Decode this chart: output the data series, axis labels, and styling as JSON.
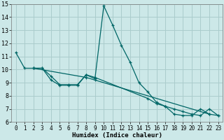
{
  "xlabel": "Humidex (Indice chaleur)",
  "bg_color": "#cce8e8",
  "grid_color": "#aacccc",
  "line_color": "#006666",
  "xlim": [
    -0.5,
    23.5
  ],
  "ylim": [
    6,
    15
  ],
  "yticks": [
    6,
    7,
    8,
    9,
    10,
    11,
    12,
    13,
    14,
    15
  ],
  "xticks": [
    0,
    1,
    2,
    3,
    4,
    5,
    6,
    7,
    8,
    9,
    10,
    11,
    12,
    13,
    14,
    15,
    16,
    17,
    18,
    19,
    20,
    21,
    22,
    23
  ],
  "series1_x": [
    0,
    1,
    2,
    3,
    4,
    5,
    6,
    7,
    8,
    9,
    10,
    11,
    12,
    13,
    14,
    15,
    16,
    17,
    18,
    19,
    20,
    21,
    22,
    23
  ],
  "series1_y": [
    11.3,
    10.1,
    10.1,
    10.1,
    9.2,
    8.8,
    8.8,
    8.8,
    9.6,
    9.3,
    14.85,
    13.4,
    11.85,
    10.55,
    9.0,
    8.3,
    7.5,
    7.2,
    6.6,
    6.5,
    6.5,
    7.0,
    6.6,
    6.5
  ],
  "series2_x": [
    2,
    3,
    4,
    5,
    6,
    7,
    8,
    9,
    15,
    16,
    17,
    18,
    19,
    20,
    21,
    22,
    23
  ],
  "series2_y": [
    10.1,
    10.1,
    9.5,
    8.85,
    8.85,
    8.85,
    9.6,
    9.4,
    7.8,
    7.4,
    7.2,
    7.0,
    6.8,
    6.6,
    6.5,
    7.0,
    6.5
  ],
  "series3_x": [
    2,
    8,
    9,
    22
  ],
  "series3_y": [
    10.1,
    9.4,
    9.2,
    6.6
  ]
}
